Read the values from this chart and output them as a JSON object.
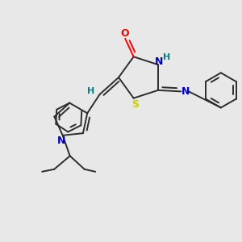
{
  "background_color": "#e8e8e8",
  "bond_color": "#2d2d2d",
  "atom_colors": {
    "O": "#ff0000",
    "N": "#0000cc",
    "S": "#cccc00",
    "H": "#008080",
    "C": "#2d2d2d"
  },
  "figsize": [
    3.0,
    3.0
  ],
  "dpi": 100
}
